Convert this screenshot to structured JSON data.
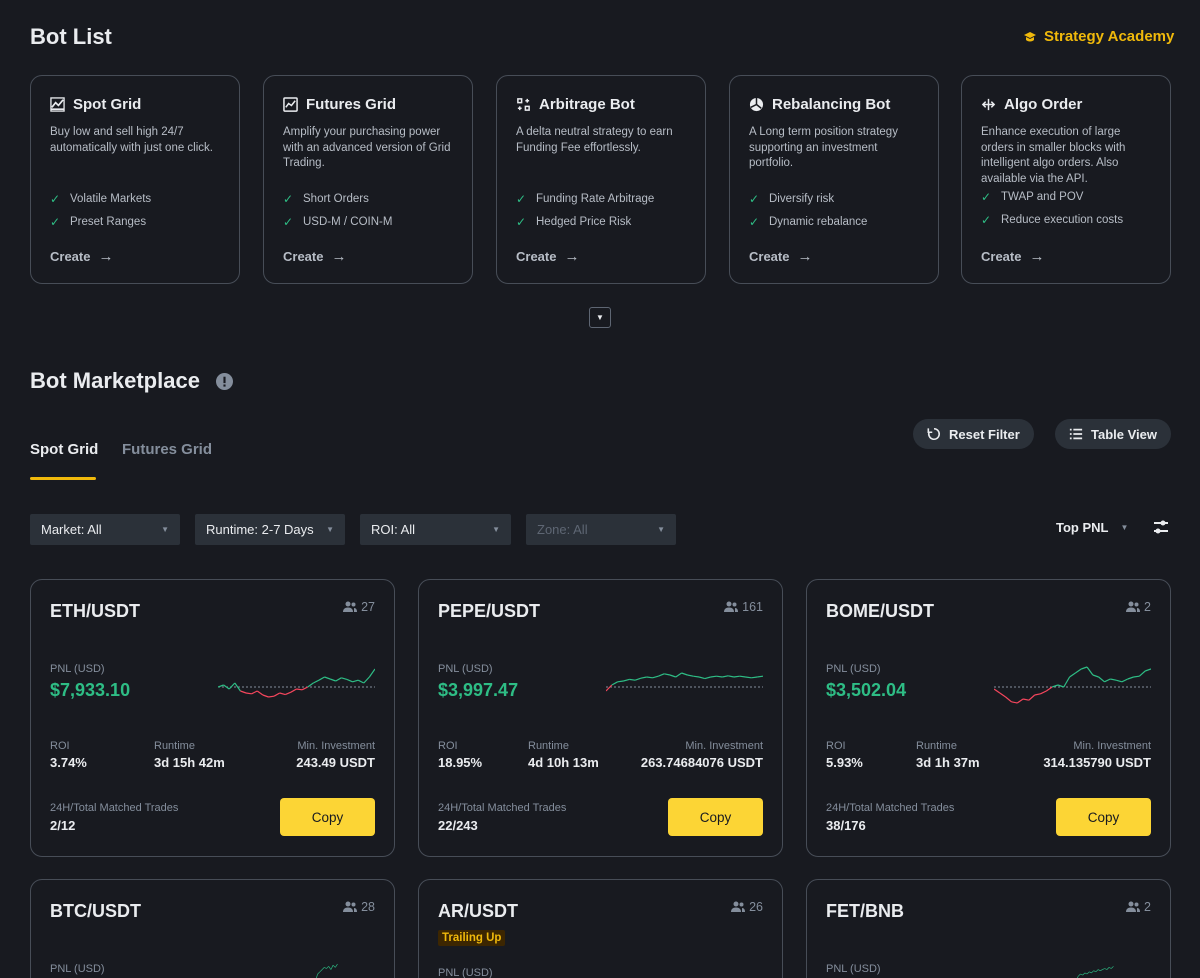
{
  "bot_list": {
    "title": "Bot List",
    "academy_label": "Strategy Academy",
    "strategies": [
      {
        "name": "Spot Grid",
        "icon": "spot-grid-icon",
        "desc": "Buy low and sell high 24/7 automatically with just one click.",
        "features": [
          "Volatile Markets",
          "Preset Ranges"
        ],
        "create": "Create"
      },
      {
        "name": "Futures Grid",
        "icon": "futures-grid-icon",
        "desc": "Amplify your purchasing power with an advanced version of Grid Trading.",
        "features": [
          "Short Orders",
          "USD-M / COIN-M"
        ],
        "create": "Create"
      },
      {
        "name": "Arbitrage Bot",
        "icon": "arbitrage-icon",
        "desc": "A delta neutral strategy to earn Funding Fee effortlessly.",
        "features": [
          "Funding Rate Arbitrage",
          "Hedged Price Risk"
        ],
        "create": "Create"
      },
      {
        "name": "Rebalancing Bot",
        "icon": "rebalancing-icon",
        "desc": "A Long term position strategy supporting an investment portfolio.",
        "features": [
          "Diversify risk",
          "Dynamic rebalance"
        ],
        "create": "Create"
      },
      {
        "name": "Algo Order",
        "icon": "algo-order-icon",
        "desc": "Enhance execution of large orders in smaller blocks with intelligent algo orders. Also available via the API.",
        "features": [
          "TWAP and POV",
          "Reduce execution costs"
        ],
        "create": "Create"
      }
    ]
  },
  "marketplace": {
    "title": "Bot Marketplace",
    "tabs": [
      {
        "label": "Spot Grid",
        "active": true
      },
      {
        "label": "Futures Grid",
        "active": false
      }
    ],
    "reset_filter": "Reset Filter",
    "table_view": "Table View",
    "filters": [
      {
        "label": "Market: All",
        "disabled": false
      },
      {
        "label": "Runtime: 2-7 Days",
        "disabled": false
      },
      {
        "label": "ROI: All",
        "disabled": false
      },
      {
        "label": "Zone: All",
        "disabled": true
      }
    ],
    "sort_label": "Top PNL",
    "labels": {
      "pnl": "PNL (USD)",
      "roi": "ROI",
      "runtime": "Runtime",
      "min_investment": "Min. Investment",
      "trades": "24H/Total Matched Trades",
      "copy": "Copy"
    },
    "bots": [
      {
        "pair": "ETH/USDT",
        "users": "27",
        "pnl": "$7,933.10",
        "roi": "3.74%",
        "runtime": "3d 15h 42m",
        "min_investment": "243.49 USDT",
        "trades": "2/12",
        "tag": "",
        "spark": [
          0.55,
          0.5,
          0.6,
          0.45,
          0.65,
          0.7,
          0.72,
          0.65,
          0.75,
          0.8,
          0.78,
          0.7,
          0.74,
          0.68,
          0.6,
          0.62,
          0.55,
          0.45,
          0.38,
          0.3,
          0.35,
          0.4,
          0.32,
          0.36,
          0.42,
          0.38,
          0.45,
          0.3,
          0.1
        ]
      },
      {
        "pair": "PEPE/USDT",
        "users": "161",
        "pnl": "$3,997.47",
        "roi": "18.95%",
        "runtime": "4d 10h 13m",
        "min_investment": "263.74684076 USDT",
        "trades": "22/243",
        "tag": "",
        "spark": [
          0.65,
          0.5,
          0.42,
          0.4,
          0.36,
          0.38,
          0.33,
          0.3,
          0.32,
          0.28,
          0.22,
          0.25,
          0.3,
          0.2,
          0.25,
          0.28,
          0.3,
          0.34,
          0.3,
          0.28,
          0.3,
          0.27,
          0.3,
          0.28,
          0.3,
          0.32,
          0.3,
          0.28
        ]
      },
      {
        "pair": "BOME/USDT",
        "users": "2",
        "pnl": "$3,502.04",
        "roi": "5.93%",
        "runtime": "3d 1h 37m",
        "min_investment": "314.135790 USDT",
        "trades": "38/176",
        "tag": "",
        "spark": [
          0.6,
          0.7,
          0.8,
          0.92,
          0.95,
          0.85,
          0.88,
          0.75,
          0.72,
          0.65,
          0.55,
          0.5,
          0.55,
          0.3,
          0.2,
          0.1,
          0.05,
          0.25,
          0.3,
          0.42,
          0.35,
          0.38,
          0.42,
          0.35,
          0.3,
          0.28,
          0.15,
          0.1
        ]
      },
      {
        "pair": "BTC/USDT",
        "users": "28",
        "pnl": "",
        "roi": "",
        "runtime": "",
        "min_investment": "",
        "trades": "",
        "tag": "",
        "spark": [
          0.8,
          0.5,
          0.4,
          0.3,
          0.2,
          0.25,
          0.15,
          0.3,
          0.1,
          0.2,
          0.05
        ]
      },
      {
        "pair": "AR/USDT",
        "users": "26",
        "pnl": "",
        "roi": "",
        "runtime": "",
        "min_investment": "",
        "trades": "",
        "tag": "Trailing Up",
        "spark": []
      },
      {
        "pair": "FET/BNB",
        "users": "2",
        "pnl": "",
        "roi": "",
        "runtime": "",
        "min_investment": "",
        "trades": "",
        "tag": "",
        "spark": [
          0.8,
          0.6,
          0.5,
          0.55,
          0.45,
          0.5,
          0.4,
          0.45,
          0.35,
          0.4,
          0.3,
          0.35,
          0.3,
          0.25,
          0.3,
          0.2,
          0.25,
          0.15
        ]
      }
    ]
  },
  "colors": {
    "accent": "#f0b90b",
    "positive": "#2ebd85",
    "negative": "#f6465d",
    "copy_button": "#fcd535",
    "background": "#181a20"
  }
}
